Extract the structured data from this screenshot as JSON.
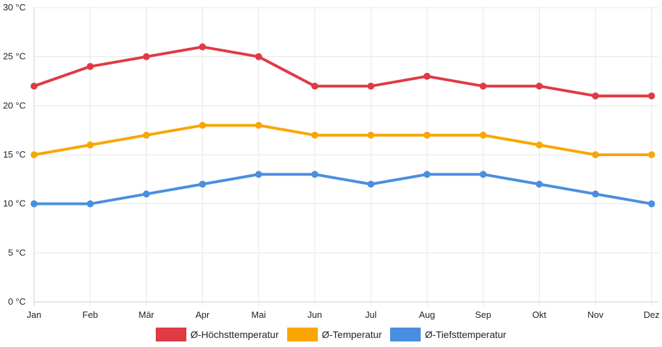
{
  "chart_data": {
    "type": "line",
    "categories": [
      "Jan",
      "Feb",
      "Mär",
      "Apr",
      "Mai",
      "Jun",
      "Jul",
      "Aug",
      "Sep",
      "Okt",
      "Nov",
      "Dez"
    ],
    "series": [
      {
        "name": "Ø-Höchsttemperatur",
        "color": "#e03a45",
        "values": [
          22,
          24,
          25,
          26,
          25,
          22,
          22,
          23,
          22,
          22,
          21,
          21
        ]
      },
      {
        "name": "Ø-Temperatur",
        "color": "#f9a602",
        "values": [
          15,
          16,
          17,
          18,
          18,
          17,
          17,
          17,
          17,
          16,
          15,
          15
        ]
      },
      {
        "name": "Ø-Tiefsttemperatur",
        "color": "#4a8fdf",
        "values": [
          10,
          10,
          11,
          12,
          13,
          13,
          12,
          13,
          13,
          12,
          11,
          10
        ]
      }
    ],
    "y_ticks": [
      "0 °C",
      "5 °C",
      "10 °C",
      "15 °C",
      "20 °C",
      "25 °C",
      "30 °C"
    ],
    "ylim": [
      0,
      30
    ],
    "grid": true,
    "legend_position": "bottom"
  }
}
